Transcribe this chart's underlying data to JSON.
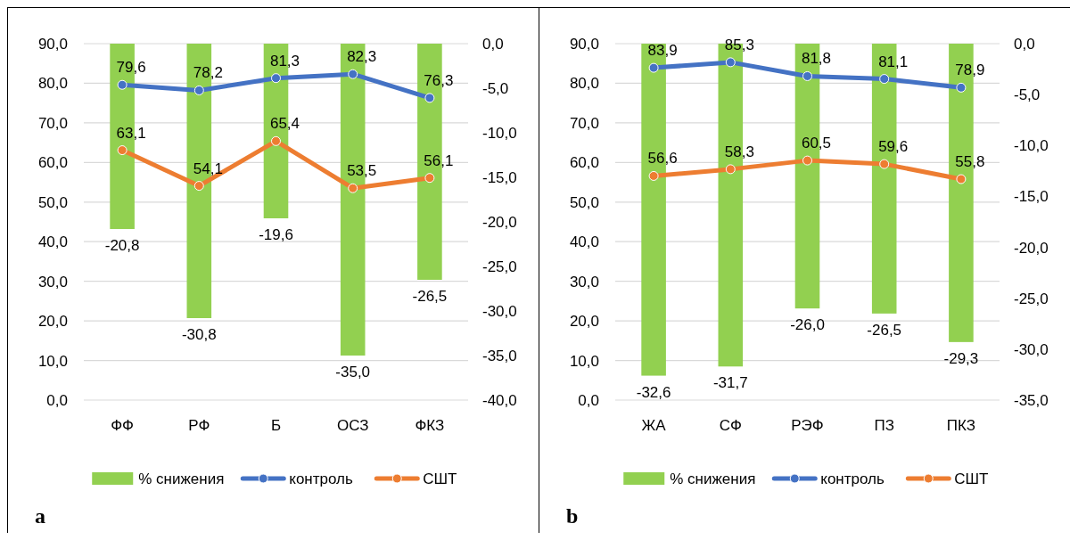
{
  "chart_data": [
    {
      "type": "bar",
      "categories": [
        "ФФ",
        "РФ",
        "Б",
        "ОСЗ",
        "ФКЗ"
      ],
      "grid": "y",
      "legend": "bottom",
      "marker": "circle",
      "annotations": [
        "a"
      ],
      "ylim": [
        0,
        90
      ],
      "yticks": [
        {
          "value": 0,
          "label": "0,0"
        },
        {
          "value": 10,
          "label": "10,0"
        },
        {
          "value": 20,
          "label": "20,0"
        },
        {
          "value": 30,
          "label": "30,0"
        },
        {
          "value": 40,
          "label": "40,0"
        },
        {
          "value": 50,
          "label": "50,0"
        },
        {
          "value": 60,
          "label": "60,0"
        },
        {
          "value": 70,
          "label": "70,0"
        },
        {
          "value": 80,
          "label": "80,0"
        },
        {
          "value": 90,
          "label": "90,0"
        }
      ],
      "y2lim": [
        -40,
        0
      ],
      "y2ticks": [
        {
          "value": 0,
          "label": "0,0"
        },
        {
          "value": -5,
          "label": "-5,0"
        },
        {
          "value": -10,
          "label": "-10,0"
        },
        {
          "value": -15,
          "label": "-15,0"
        },
        {
          "value": -20,
          "label": "-20,0"
        },
        {
          "value": -25,
          "label": "-25,0"
        },
        {
          "value": -30,
          "label": "-30,0"
        },
        {
          "value": -35,
          "label": "-35,0"
        },
        {
          "value": -40,
          "label": "-40,0"
        }
      ],
      "series": [
        {
          "name": "% снижения",
          "axis": "y2",
          "color": "#92d050",
          "values": [
            -20.8,
            -30.8,
            -19.6,
            -35.0,
            -26.5
          ],
          "value_labels": [
            "-20,8",
            "-30,8",
            "-19,6",
            "-35,0",
            "-26,5"
          ]
        },
        {
          "name": "контроль",
          "type": "line",
          "color": "#4472c4",
          "values": [
            79.6,
            78.2,
            81.3,
            82.3,
            76.3
          ],
          "value_labels": [
            "79,6",
            "78,2",
            "81,3",
            "82,3",
            "76,3"
          ]
        },
        {
          "name": "СШТ",
          "type": "line",
          "color": "#ed7d31",
          "values": [
            63.1,
            54.1,
            65.4,
            53.5,
            56.1
          ],
          "value_labels": [
            "63,1",
            "54,1",
            "65,4",
            "53,5",
            "56,1"
          ]
        }
      ]
    },
    {
      "type": "bar",
      "categories": [
        "ЖА",
        "СФ",
        "РЭФ",
        "ПЗ",
        "ПКЗ"
      ],
      "grid": "y",
      "legend": "bottom",
      "marker": "circle",
      "annotations": [
        "b"
      ],
      "ylim": [
        0,
        90
      ],
      "yticks": [
        {
          "value": 0,
          "label": "0,0"
        },
        {
          "value": 10,
          "label": "10,0"
        },
        {
          "value": 20,
          "label": "20,0"
        },
        {
          "value": 30,
          "label": "30,0"
        },
        {
          "value": 40,
          "label": "40,0"
        },
        {
          "value": 50,
          "label": "50,0"
        },
        {
          "value": 60,
          "label": "60,0"
        },
        {
          "value": 70,
          "label": "70,0"
        },
        {
          "value": 80,
          "label": "80,0"
        },
        {
          "value": 90,
          "label": "90,0"
        }
      ],
      "y2lim": [
        -35,
        0
      ],
      "y2ticks": [
        {
          "value": 0,
          "label": "0,0"
        },
        {
          "value": -5,
          "label": "-5,0"
        },
        {
          "value": -10,
          "label": "-10,0"
        },
        {
          "value": -15,
          "label": "-15,0"
        },
        {
          "value": -20,
          "label": "-20,0"
        },
        {
          "value": -25,
          "label": "-25,0"
        },
        {
          "value": -30,
          "label": "-30,0"
        },
        {
          "value": -35,
          "label": "-35,0"
        }
      ],
      "series": [
        {
          "name": "% снижения",
          "axis": "y2",
          "color": "#92d050",
          "values": [
            -32.6,
            -31.7,
            -26.0,
            -26.5,
            -29.3
          ],
          "value_labels": [
            "-32,6",
            "-31,7",
            "-26,0",
            "-26,5",
            "-29,3"
          ]
        },
        {
          "name": "контроль",
          "type": "line",
          "color": "#4472c4",
          "values": [
            83.9,
            85.3,
            81.8,
            81.1,
            78.9
          ],
          "value_labels": [
            "83,9",
            "85,3",
            "81,8",
            "81,1",
            "78,9"
          ]
        },
        {
          "name": "СШТ",
          "type": "line",
          "color": "#ed7d31",
          "values": [
            56.6,
            58.3,
            60.5,
            59.6,
            55.8
          ],
          "value_labels": [
            "56,6",
            "58,3",
            "60,5",
            "59,6",
            "55,8"
          ]
        }
      ]
    }
  ]
}
